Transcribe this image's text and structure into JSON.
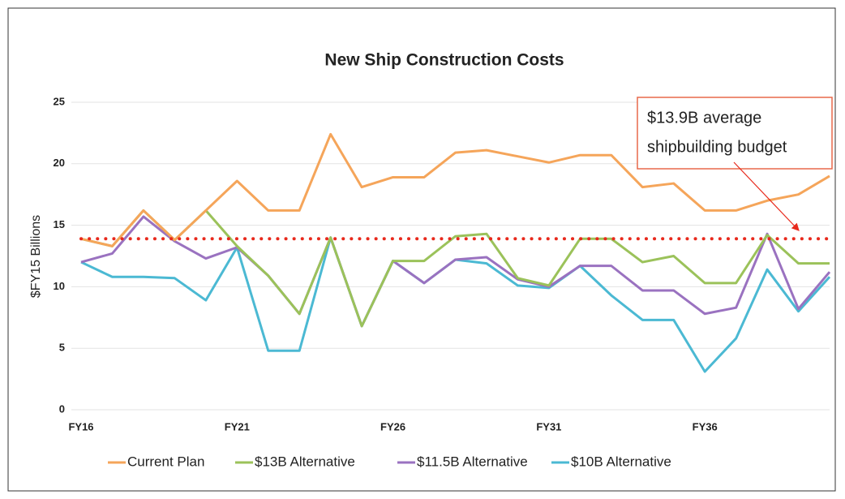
{
  "chart_data": {
    "type": "line",
    "title": "New Ship Construction Costs",
    "y_label": "$FY15 Billions",
    "categories": [
      "FY16",
      null,
      null,
      null,
      null,
      "FY21",
      null,
      null,
      null,
      null,
      "FY26",
      null,
      null,
      null,
      null,
      "FY31",
      null,
      null,
      null,
      null,
      "FY36",
      null,
      null,
      null,
      null
    ],
    "series": [
      {
        "name": "Current Plan",
        "color": "#f5a55a",
        "values": [
          13.9,
          13.3,
          16.2,
          13.8,
          16.2,
          18.6,
          16.2,
          16.2,
          22.4,
          18.1,
          18.9,
          18.9,
          20.9,
          21.1,
          20.6,
          20.1,
          20.7,
          20.7,
          18.1,
          18.4,
          16.2,
          16.2,
          17.0,
          17.5,
          19.0
        ]
      },
      {
        "name": "$13B Alternative",
        "color": "#9bc25a",
        "values": [
          13.9,
          13.3,
          16.2,
          13.8,
          16.2,
          13.3,
          10.9,
          7.8,
          14.0,
          6.8,
          12.1,
          12.1,
          14.1,
          14.3,
          10.7,
          10.1,
          13.9,
          13.9,
          12.0,
          12.5,
          10.3,
          10.3,
          14.2,
          11.9,
          11.9
        ]
      },
      {
        "name": "$11.5B Alternative",
        "color": "#9a72c0",
        "values": [
          12.0,
          12.7,
          15.7,
          13.7,
          12.3,
          13.2,
          10.9,
          7.8,
          14.0,
          6.8,
          12.1,
          10.3,
          12.2,
          12.4,
          10.6,
          10.0,
          11.7,
          11.7,
          9.7,
          9.7,
          7.8,
          8.3,
          14.3,
          8.2,
          11.2
        ]
      },
      {
        "name": "$10B Alternative",
        "color": "#4bb9d3",
        "values": [
          12.0,
          10.8,
          10.8,
          10.7,
          8.9,
          13.2,
          4.8,
          4.8,
          14.0,
          6.8,
          12.1,
          10.3,
          12.2,
          11.9,
          10.1,
          9.9,
          11.7,
          9.3,
          7.3,
          7.3,
          3.1,
          5.8,
          11.4,
          8.0,
          10.8
        ]
      }
    ],
    "budget": 13.9,
    "budget_color": "#e8291c",
    "annotation": [
      "$13.9B average",
      "shipbuilding budget"
    ],
    "ylim": [
      0,
      25
    ],
    "yticks": [
      0,
      5,
      10,
      15,
      20,
      25
    ],
    "grid": true
  }
}
